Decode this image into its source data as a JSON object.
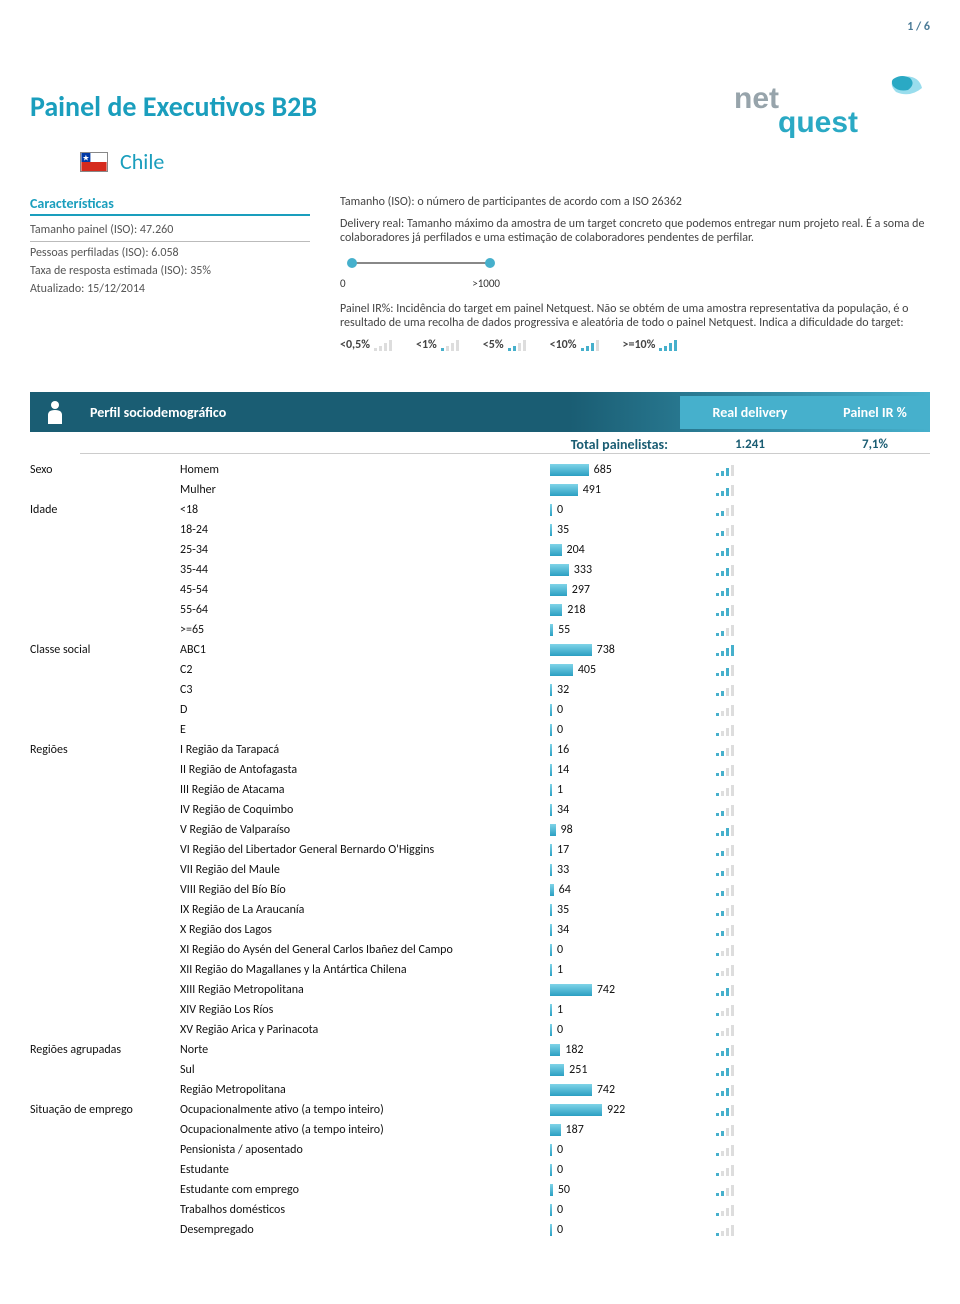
{
  "page_number": "1 / 6",
  "title": "Painel de Executivos B2B",
  "country": "Chile",
  "characteristics": {
    "header": "Características",
    "lines": [
      "Tamanho painel (ISO): 47.260",
      "Pessoas perfiladas (ISO): 6.058",
      "Taxa de resposta estimada (ISO): 35%",
      "Atualizado: 15/12/2014"
    ]
  },
  "desc": {
    "p1": "Tamanho (ISO): o número de participantes de acordo com a ISO 26362",
    "p2": "Delivery real: Tamanho máximo da amostra de um target concreto que podemos entregar num projeto real. É a soma de colaboradores já perfilados e uma estimação de colaboradores pendentes de perfilar.",
    "p3": "Painel IR%: Incidência do target em painel Netquest. Não se obtém de uma amostra representativa da população, é o resultado de uma recolha de dados progressiva e aleatória de todo o painel Netquest. Indica a dificuldade do target:",
    "slider_min": "0",
    "slider_max": ">1000",
    "legend": [
      "<0,5%",
      "<1%",
      "<5%",
      "<10%",
      ">=10%"
    ]
  },
  "section": {
    "title": "Perfil sociodemográfico",
    "col2": "Real delivery",
    "col3": "Painel IR %",
    "total_label": "Total painelistas:",
    "total_val": "1.241",
    "total_pct": "7,1%"
  },
  "max_value": 1241,
  "groups": [
    {
      "cat": "Sexo",
      "rows": [
        {
          "label": "Homem",
          "value": 685,
          "ir": 3
        },
        {
          "label": "Mulher",
          "value": 491,
          "ir": 3
        }
      ]
    },
    {
      "cat": "Idade",
      "rows": [
        {
          "label": "<18",
          "value": 0,
          "ir": 2
        },
        {
          "label": "18-24",
          "value": 35,
          "ir": 2
        },
        {
          "label": "25-34",
          "value": 204,
          "ir": 3
        },
        {
          "label": "35-44",
          "value": 333,
          "ir": 3
        },
        {
          "label": "45-54",
          "value": 297,
          "ir": 3
        },
        {
          "label": "55-64",
          "value": 218,
          "ir": 3
        },
        {
          "label": ">=65",
          "value": 55,
          "ir": 2
        }
      ]
    },
    {
      "cat": "Classe social",
      "rows": [
        {
          "label": "ABC1",
          "value": 738,
          "ir": 4
        },
        {
          "label": "C2",
          "value": 405,
          "ir": 3
        },
        {
          "label": "C3",
          "value": 32,
          "ir": 2
        },
        {
          "label": "D",
          "value": 0,
          "ir": 1
        },
        {
          "label": "E",
          "value": 0,
          "ir": 1
        }
      ]
    },
    {
      "cat": "Regiões",
      "rows": [
        {
          "label": "I Região da Tarapacá",
          "value": 16,
          "ir": 2
        },
        {
          "label": "II Região de Antofagasta",
          "value": 14,
          "ir": 2
        },
        {
          "label": "III Região de Atacama",
          "value": 1,
          "ir": 1
        },
        {
          "label": "IV Região de Coquimbo",
          "value": 34,
          "ir": 2
        },
        {
          "label": "V Região de Valparaíso",
          "value": 98,
          "ir": 3
        },
        {
          "label": "VI Região del Libertador General Bernardo O'Higgins",
          "value": 17,
          "ir": 2
        },
        {
          "label": "VII Região del Maule",
          "value": 33,
          "ir": 2
        },
        {
          "label": "VIII Região del Bío Bío",
          "value": 64,
          "ir": 2
        },
        {
          "label": "IX Região de La Araucanía",
          "value": 35,
          "ir": 2
        },
        {
          "label": "X Região dos Lagos",
          "value": 34,
          "ir": 2
        },
        {
          "label": "XI Região do Aysén del General Carlos Ibañez del Campo",
          "value": 0,
          "ir": 1
        },
        {
          "label": "XII Região do Magallanes y la Antártica Chilena",
          "value": 1,
          "ir": 1
        },
        {
          "label": "XIII Região Metropolitana",
          "value": 742,
          "ir": 3
        },
        {
          "label": "XIV Região Los Ríos",
          "value": 1,
          "ir": 1
        },
        {
          "label": "XV Região Arica y Parinacota",
          "value": 0,
          "ir": 1
        }
      ]
    },
    {
      "cat": "Regiões agrupadas",
      "rows": [
        {
          "label": "Norte",
          "value": 182,
          "ir": 3
        },
        {
          "label": "Sul",
          "value": 251,
          "ir": 3
        },
        {
          "label": "Região Metropolitana",
          "value": 742,
          "ir": 3
        }
      ]
    },
    {
      "cat": "Situação de emprego",
      "rows": [
        {
          "label": "Ocupacionalmente ativo (a tempo inteiro)",
          "value": 922,
          "ir": 3
        },
        {
          "label": "Ocupacionalmente ativo (a tempo inteiro)",
          "value": 187,
          "ir": 2
        },
        {
          "label": "Pensionista / aposentado",
          "value": 0,
          "ir": 1
        },
        {
          "label": "Estudante",
          "value": 0,
          "ir": 1
        },
        {
          "label": "Estudante com emprego",
          "value": 50,
          "ir": 2
        },
        {
          "label": "Trabalhos domésticos",
          "value": 0,
          "ir": 1
        },
        {
          "label": "Desempregado",
          "value": 0,
          "ir": 1
        }
      ]
    }
  ],
  "colors": {
    "brand_primary": "#1a9ebd",
    "brand_dark": "#1a5d73",
    "brand_light": "#46b0cc",
    "bar_gradient_top": "#7fd4e8",
    "bar_gradient_bottom": "#2a9fc2",
    "text_grey": "#555",
    "logo_grey": "#97a4ab",
    "logo_teal": "#2aa9c4"
  }
}
